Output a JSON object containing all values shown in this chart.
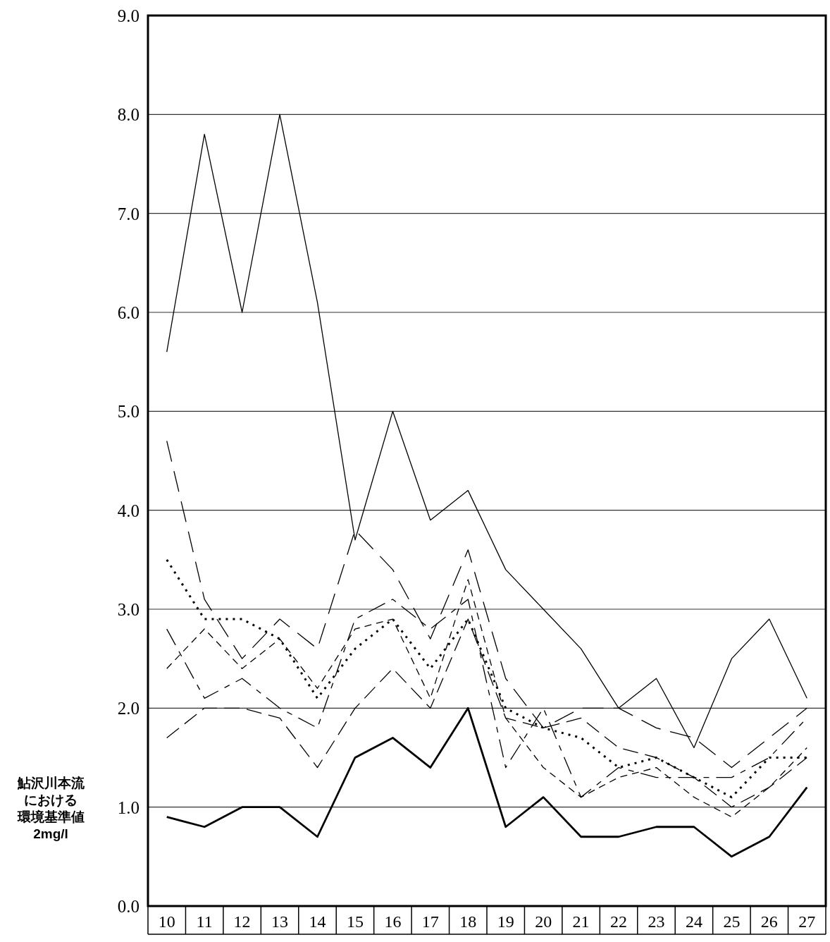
{
  "chart_data": {
    "type": "line",
    "categories": [
      "10",
      "11",
      "12",
      "13",
      "14",
      "15",
      "16",
      "17",
      "18",
      "19",
      "20",
      "21",
      "22",
      "23",
      "24",
      "25",
      "26",
      "27"
    ],
    "series": [
      {
        "color": "#000000",
        "line_style": "solid",
        "values": [
          5.6,
          7.8,
          6.0,
          8.0,
          6.1,
          3.7,
          5.0,
          3.9,
          4.2,
          3.4,
          3.0,
          2.6,
          2.0,
          2.3,
          1.6,
          2.5,
          2.9,
          2.1
        ]
      },
      {
        "color": "#000000",
        "line_style": "dashed",
        "values": [
          4.7,
          3.1,
          2.5,
          2.9,
          2.6,
          3.8,
          3.4,
          2.7,
          3.6,
          2.3,
          1.8,
          2.0,
          2.0,
          1.8,
          1.7,
          1.4,
          1.7,
          2.0
        ]
      },
      {
        "color": "#000000",
        "line_style": "dotted",
        "values": [
          3.5,
          2.9,
          2.9,
          2.7,
          2.1,
          2.6,
          2.9,
          2.4,
          2.9,
          2.0,
          1.8,
          1.7,
          1.4,
          1.5,
          1.3,
          1.1,
          1.5,
          1.5
        ]
      },
      {
        "color": "#000000",
        "line_style": "solid",
        "values": [
          0.9,
          0.8,
          1.0,
          1.0,
          0.7,
          1.5,
          1.7,
          1.4,
          2.0,
          0.8,
          1.1,
          0.7,
          0.7,
          0.8,
          0.8,
          0.5,
          0.7,
          1.2
        ]
      },
      {
        "color": "#000000",
        "line_style": "dashed",
        "values": [
          2.8,
          2.1,
          2.3,
          2.0,
          1.8,
          2.9,
          3.1,
          2.8,
          3.1,
          1.4,
          2.0,
          1.1,
          1.4,
          1.3,
          1.3,
          1.3,
          1.5,
          1.9
        ]
      },
      {
        "color": "#000000",
        "line_style": "dashed",
        "values": [
          1.7,
          2.0,
          2.0,
          1.9,
          1.4,
          2.0,
          2.4,
          2.0,
          2.9,
          1.9,
          1.8,
          1.9,
          1.6,
          1.5,
          1.3,
          1.0,
          1.2,
          1.5
        ]
      },
      {
        "color": "#000000",
        "line_style": "dashed",
        "values": [
          2.4,
          2.8,
          2.4,
          2.7,
          2.2,
          2.8,
          2.9,
          2.1,
          3.3,
          1.9,
          1.4,
          1.1,
          1.3,
          1.4,
          1.1,
          0.9,
          1.2,
          1.6
        ]
      }
    ],
    "ylim": [
      0,
      9
    ],
    "yticks": [
      {
        "value": 0,
        "label": "0.0"
      },
      {
        "value": 1,
        "label": "1.0"
      },
      {
        "value": 2,
        "label": "2.0"
      },
      {
        "value": 3,
        "label": "3.0"
      },
      {
        "value": 4,
        "label": "4.0"
      },
      {
        "value": 5,
        "label": "5.0"
      },
      {
        "value": 6,
        "label": "6.0"
      },
      {
        "value": 7,
        "label": "7.0"
      },
      {
        "value": 8,
        "label": "8.0"
      },
      {
        "value": 9,
        "label": "9.0"
      }
    ],
    "grid": "y",
    "marker": "none",
    "annotations": [
      "鮎沢川本流",
      "における",
      "環境基準値",
      "2mg/l"
    ]
  }
}
